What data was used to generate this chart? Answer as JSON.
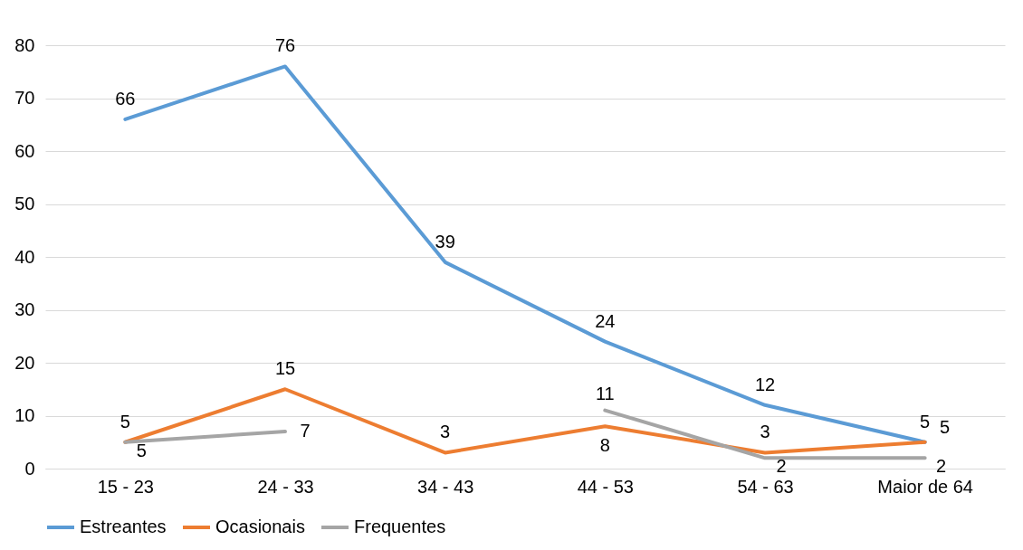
{
  "chart_data": {
    "type": "line",
    "categories": [
      "15 - 23",
      "24 - 33",
      "34 - 43",
      "44 - 53",
      "54 - 63",
      "Maior de 64"
    ],
    "series": [
      {
        "name": "Estreantes",
        "color": "#5b9bd5",
        "values": [
          66,
          76,
          39,
          24,
          12,
          5
        ]
      },
      {
        "name": "Ocasionais",
        "color": "#ed7d31",
        "values": [
          5,
          15,
          3,
          8,
          3,
          5
        ]
      },
      {
        "name": "Frequentes",
        "color": "#a5a5a5",
        "values": [
          5,
          7,
          null,
          11,
          2,
          2
        ]
      }
    ],
    "ylim": [
      0,
      80
    ],
    "yticks": [
      0,
      10,
      20,
      30,
      40,
      50,
      60,
      70,
      80
    ],
    "grid": "y",
    "legend": "bottom",
    "data_labels": true,
    "marker": "none",
    "line_style": "solid"
  }
}
